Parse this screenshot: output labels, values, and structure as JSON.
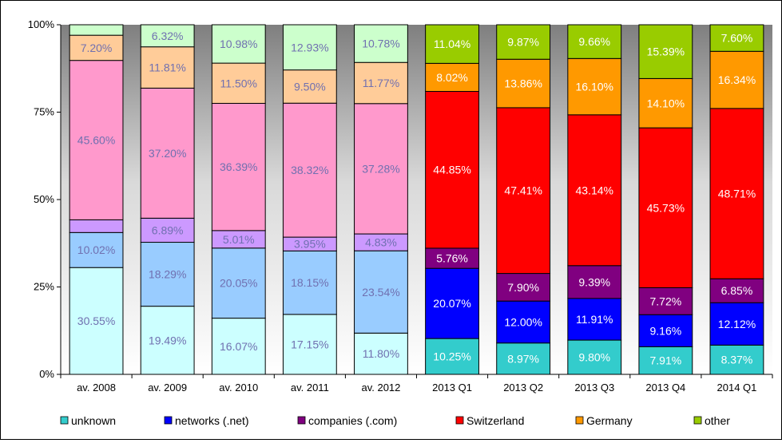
{
  "chart_data": {
    "type": "bar",
    "stacked": true,
    "percent": true,
    "categories": [
      "av. 2008",
      "av. 2009",
      "av. 2010",
      "av. 2011",
      "av. 2012",
      "2013 Q1",
      "2013 Q2",
      "2013 Q3",
      "2013 Q4",
      "2014 Q1"
    ],
    "ylim": [
      0,
      100
    ],
    "yticks": [
      "0%",
      "25%",
      "50%",
      "75%",
      "100%"
    ],
    "legend_position": "bottom",
    "series": [
      {
        "name": "unknown",
        "color": "#33cccc",
        "pale_color": "#ccffff",
        "values": [
          30.55,
          19.49,
          16.07,
          17.15,
          11.8,
          10.25,
          8.97,
          9.8,
          7.91,
          8.37
        ],
        "labels": [
          "30.55%",
          "19.49%",
          "16.07%",
          "17.15%",
          "11.80%",
          "10.25%",
          "8.97%",
          "9.80%",
          "7.91%",
          "8.37%"
        ]
      },
      {
        "name": "networks (.net)",
        "color": "#0000ff",
        "pale_color": "#99ccff",
        "values": [
          10.02,
          18.29,
          20.05,
          18.15,
          23.54,
          20.07,
          12.0,
          11.91,
          9.16,
          12.12
        ],
        "labels": [
          "10.02%",
          "18.29%",
          "20.05%",
          "18.15%",
          "23.54%",
          "20.07%",
          "12.00%",
          "11.91%",
          "9.16%",
          "12.12%"
        ]
      },
      {
        "name": "companies (.com)",
        "color": "#800080",
        "pale_color": "#cc99ff",
        "values": [
          3.63,
          6.89,
          5.01,
          3.95,
          4.83,
          5.76,
          7.9,
          9.39,
          7.72,
          6.85
        ],
        "labels": [
          "",
          "6.89%",
          "5.01%",
          "3.95%",
          "4.83%",
          "5.76%",
          "7.90%",
          "9.39%",
          "7.72%",
          "6.85%"
        ]
      },
      {
        "name": "Switzerland",
        "color": "#ff0000",
        "pale_color": "#ff99cc",
        "values": [
          45.6,
          37.2,
          36.39,
          38.32,
          37.28,
          44.85,
          47.41,
          43.14,
          45.73,
          48.71
        ],
        "labels": [
          "45.60%",
          "37.20%",
          "36.39%",
          "38.32%",
          "37.28%",
          "44.85%",
          "47.41%",
          "43.14%",
          "45.73%",
          "48.71%"
        ]
      },
      {
        "name": "Germany",
        "color": "#ff9900",
        "pale_color": "#ffcc99",
        "values": [
          7.2,
          11.81,
          11.5,
          9.5,
          11.77,
          8.02,
          13.86,
          16.1,
          14.1,
          16.34
        ],
        "labels": [
          "7.20%",
          "11.81%",
          "11.50%",
          "9.50%",
          "11.77%",
          "8.02%",
          "13.86%",
          "16.10%",
          "14.10%",
          "16.34%"
        ]
      },
      {
        "name": "other",
        "color": "#99cc00",
        "pale_color": "#ccffcc",
        "values": [
          3.0,
          6.32,
          10.98,
          12.93,
          10.78,
          11.04,
          9.87,
          9.66,
          15.39,
          7.6
        ],
        "labels": [
          "",
          "6.32%",
          "10.98%",
          "12.93%",
          "10.78%",
          "11.04%",
          "9.87%",
          "9.66%",
          "15.39%",
          "7.60%"
        ]
      }
    ],
    "pale_label_color": "#7070b0",
    "bright_label_color": "#ffffff"
  }
}
